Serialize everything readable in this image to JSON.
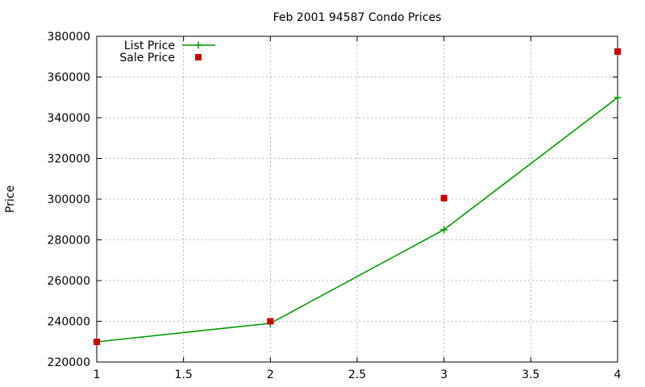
{
  "chart_data": {
    "type": "line",
    "title": "Feb 2001 94587 Condo Prices",
    "xlabel": "",
    "ylabel": "Price",
    "xlim": [
      1,
      4
    ],
    "ylim": [
      220000,
      380000
    ],
    "x_ticks": [
      "1",
      "1.5",
      "2",
      "2.5",
      "3",
      "3.5",
      "4"
    ],
    "y_ticks": [
      "220000",
      "240000",
      "260000",
      "280000",
      "300000",
      "320000",
      "340000",
      "360000",
      "380000"
    ],
    "grid": true,
    "legend_position": "top-left",
    "series": [
      {
        "name": "List Price",
        "style": "linespoints",
        "marker": "plus",
        "color": "#009900",
        "x": [
          1,
          2,
          3,
          4
        ],
        "y": [
          229900,
          239000,
          285000,
          349900
        ]
      },
      {
        "name": "Sale Price",
        "style": "points",
        "marker": "square",
        "color": "#cc0000",
        "x": [
          1,
          2,
          3,
          4
        ],
        "y": [
          229900,
          240000,
          300500,
          372500
        ]
      }
    ]
  }
}
